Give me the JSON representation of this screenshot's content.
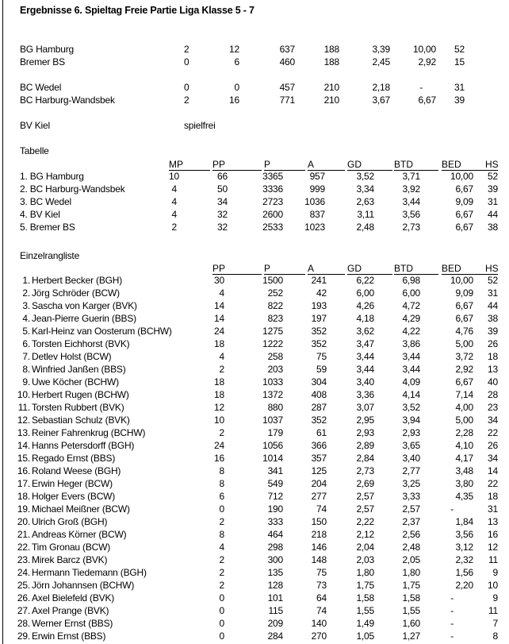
{
  "title": "Ergebnisse 6. Spieltag Freie Partie Liga Klasse 5 - 7",
  "matches": [
    [
      "BG Hamburg",
      "2",
      "12",
      "637",
      "188",
      "3,39",
      "10,00",
      "52"
    ],
    [
      "Bremer BS",
      "0",
      "6",
      "460",
      "188",
      "2,45",
      "2,92",
      "15"
    ],
    [
      "BC Wedel",
      "0",
      "0",
      "457",
      "210",
      "2,18",
      "-",
      "31"
    ],
    [
      "BC Harburg-Wandsbek",
      "2",
      "16",
      "771",
      "210",
      "3,67",
      "6,67",
      "39"
    ]
  ],
  "bye": {
    "team": "BV Kiel",
    "note": "spielfrei"
  },
  "table": {
    "label": "Tabelle",
    "headers": [
      "MP",
      "PP",
      "P",
      "A",
      "GD",
      "BTD",
      "BED",
      "HS"
    ],
    "rows": [
      [
        "1. BG Hamburg",
        "10",
        "66",
        "3365",
        "957",
        "3,52",
        "3,71",
        "10,00",
        "52"
      ],
      [
        "2. BC Harburg-Wandsbek",
        "4",
        "50",
        "3336",
        "999",
        "3,34",
        "3,92",
        "6,67",
        "39"
      ],
      [
        "3. BC Wedel",
        "4",
        "34",
        "2723",
        "1036",
        "2,63",
        "3,44",
        "9,09",
        "31"
      ],
      [
        "4. BV Kiel",
        "4",
        "32",
        "2600",
        "837",
        "3,11",
        "3,56",
        "6,67",
        "44"
      ],
      [
        "5. Bremer BS",
        "2",
        "32",
        "2533",
        "1023",
        "2,48",
        "2,73",
        "6,67",
        "38"
      ]
    ]
  },
  "ranking": {
    "label": "Einzelrangliste",
    "headers": [
      "PP",
      "P",
      "A",
      "GD",
      "BTD",
      "BED",
      "HS"
    ],
    "rows": [
      [
        "1.",
        "Herbert Becker (BGH)",
        "30",
        "1500",
        "241",
        "6,22",
        "6,98",
        "10,00",
        "52"
      ],
      [
        "2.",
        "Jörg Schröder (BCW)",
        "4",
        "252",
        "42",
        "6,00",
        "6,00",
        "9,09",
        "31"
      ],
      [
        "3.",
        "Sascha von Karger (BVK)",
        "14",
        "822",
        "193",
        "4,26",
        "4,72",
        "6,67",
        "44"
      ],
      [
        "4.",
        "Jean-Pierre Guerin (BBS)",
        "14",
        "823",
        "197",
        "4,18",
        "4,29",
        "6,67",
        "38"
      ],
      [
        "5.",
        "Karl-Heinz van Oosterum (BCHW)",
        "24",
        "1275",
        "352",
        "3,62",
        "4,22",
        "4,76",
        "39"
      ],
      [
        "6.",
        "Torsten Eichhorst (BVK)",
        "18",
        "1222",
        "352",
        "3,47",
        "3,86",
        "5,00",
        "26"
      ],
      [
        "7.",
        "Detlev Holst (BCW)",
        "4",
        "258",
        "75",
        "3,44",
        "3,44",
        "3,72",
        "18"
      ],
      [
        "8.",
        "Winfried Janßen (BBS)",
        "2",
        "203",
        "59",
        "3,44",
        "3,44",
        "2,92",
        "13"
      ],
      [
        "9.",
        "Uwe Köcher (BCHW)",
        "18",
        "1033",
        "304",
        "3,40",
        "4,09",
        "6,67",
        "40"
      ],
      [
        "10.",
        "Herbert Rugen (BCHW)",
        "18",
        "1372",
        "408",
        "3,36",
        "4,14",
        "7,14",
        "28"
      ],
      [
        "11.",
        "Torsten Rubbert (BVK)",
        "12",
        "880",
        "287",
        "3,07",
        "3,52",
        "4,00",
        "23"
      ],
      [
        "12.",
        "Sebastian Schulz (BVK)",
        "10",
        "1037",
        "352",
        "2,95",
        "3,94",
        "5,00",
        "34"
      ],
      [
        "13.",
        "Reiner Fahrenkrug (BCHW)",
        "2",
        "179",
        "61",
        "2,93",
        "2,93",
        "2,28",
        "22"
      ],
      [
        "14.",
        "Hanns Petersdorff (BGH)",
        "24",
        "1056",
        "366",
        "2,89",
        "3,65",
        "4,10",
        "26"
      ],
      [
        "15.",
        "Regado Ernst (BBS)",
        "16",
        "1014",
        "357",
        "2,84",
        "3,40",
        "4,17",
        "34"
      ],
      [
        "16.",
        "Roland Weese (BGH)",
        "8",
        "341",
        "125",
        "2,73",
        "2,77",
        "3,48",
        "14"
      ],
      [
        "17.",
        "Erwin Heger (BCW)",
        "8",
        "549",
        "204",
        "2,69",
        "3,25",
        "3,80",
        "22"
      ],
      [
        "18.",
        "Holger Evers (BCW)",
        "6",
        "712",
        "277",
        "2,57",
        "3,33",
        "4,35",
        "18"
      ],
      [
        "19.",
        "Michael Meißner (BCW)",
        "0",
        "190",
        "74",
        "2,57",
        "2,57",
        "-",
        "31"
      ],
      [
        "20.",
        "Ulrich Groß (BGH)",
        "2",
        "333",
        "150",
        "2,22",
        "2,37",
        "1,84",
        "13"
      ],
      [
        "21.",
        "Andreas Körner (BCW)",
        "8",
        "464",
        "218",
        "2,12",
        "2,56",
        "3,56",
        "16"
      ],
      [
        "22.",
        "Tim Gronau (BCW)",
        "4",
        "298",
        "146",
        "2,04",
        "2,48",
        "3,12",
        "12"
      ],
      [
        "23.",
        "Mirek Barcz (BVK)",
        "2",
        "300",
        "148",
        "2,03",
        "2,05",
        "2,32",
        "11"
      ],
      [
        "24.",
        "Hermann Tiedemann (BGH)",
        "2",
        "135",
        "75",
        "1,80",
        "1,80",
        "1,56",
        "9"
      ],
      [
        "25.",
        "Jörn Johannsen (BCHW)",
        "2",
        "128",
        "73",
        "1,75",
        "1,75",
        "2,20",
        "10"
      ],
      [
        "26.",
        "Axel Bielefeld (BVK)",
        "0",
        "101",
        "64",
        "1,58",
        "1,58",
        "-",
        "9"
      ],
      [
        "27.",
        "Axel Prange (BVK)",
        "0",
        "115",
        "74",
        "1,55",
        "1,55",
        "-",
        "11"
      ],
      [
        "28.",
        "Werner Ernst (BBS)",
        "0",
        "209",
        "140",
        "1,49",
        "1,60",
        "-",
        "7"
      ],
      [
        "29.",
        "Erwin Ernst (BBS)",
        "0",
        "284",
        "270",
        "1,05",
        "1,27",
        "-",
        "8"
      ]
    ]
  }
}
